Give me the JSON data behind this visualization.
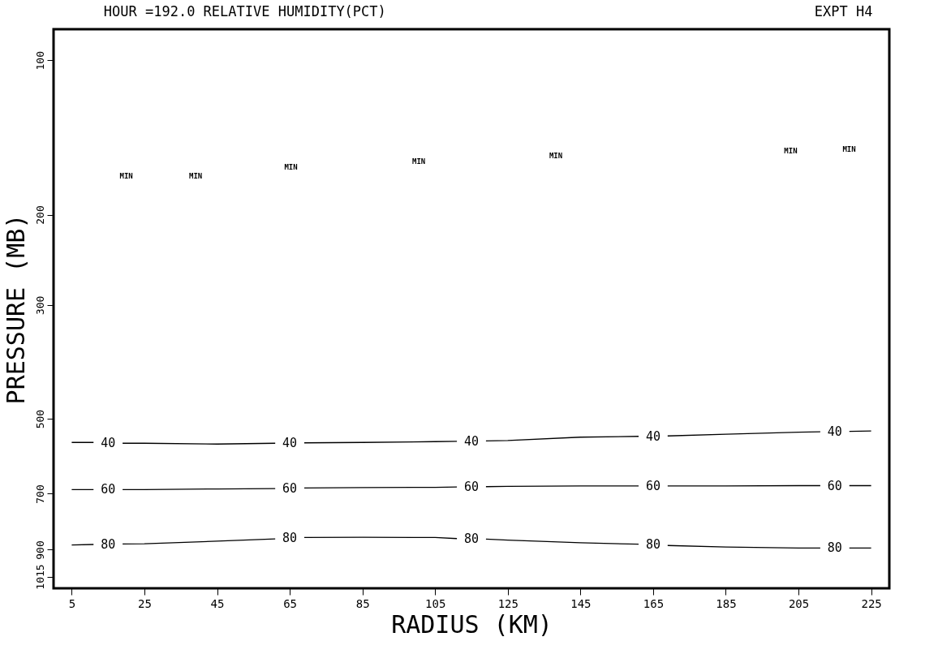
{
  "chart_data": {
    "type": "line",
    "title": "HOUR =192.0  RELATIVE HUMIDITY(PCT)",
    "xlabel": "RADIUS (KM)",
    "ylabel": "PRESSURE (MB)",
    "x": [
      5,
      11,
      15,
      19,
      25,
      45,
      61,
      65,
      69,
      85,
      105,
      111,
      115,
      119,
      125,
      145,
      161,
      165,
      169,
      185,
      205,
      211,
      215,
      219,
      225
    ],
    "series": [
      {
        "name": "40",
        "color": "#000000",
        "values": [
          556,
          556,
          null,
          558,
          558,
          560,
          558,
          null,
          557,
          556,
          554,
          553,
          null,
          552,
          551,
          543,
          541,
          null,
          540,
          536,
          531,
          530,
          null,
          529,
          528
        ]
      },
      {
        "name": "60",
        "color": "#000000",
        "values": [
          687,
          687,
          null,
          687,
          687,
          685,
          684,
          null,
          682,
          681,
          680,
          679,
          null,
          678,
          677,
          676,
          676,
          null,
          676,
          676,
          675,
          675,
          null,
          675,
          675
        ]
      },
      {
        "name": "80",
        "color": "#000000",
        "values": [
          881,
          879,
          null,
          877,
          876,
          866,
          857,
          null,
          852,
          851,
          852,
          856,
          null,
          858,
          862,
          872,
          878,
          null,
          883,
          889,
          893,
          893,
          null,
          893,
          893
        ]
      }
    ],
    "xlim": [
      0,
      230
    ],
    "xticks": [
      5,
      25,
      45,
      65,
      85,
      105,
      125,
      145,
      165,
      185,
      205,
      225
    ],
    "ylim": [
      1070,
      87
    ],
    "yticks": [
      100,
      200,
      300,
      500,
      700,
      900,
      1015
    ],
    "log": "y",
    "grid": false,
    "legend": false,
    "marker": "none",
    "line_style": "solid",
    "annotations": [
      "EXPT H4",
      "MIN",
      "MIN",
      "MIN",
      "MIN",
      "MIN",
      "MIN",
      "MIN"
    ]
  }
}
